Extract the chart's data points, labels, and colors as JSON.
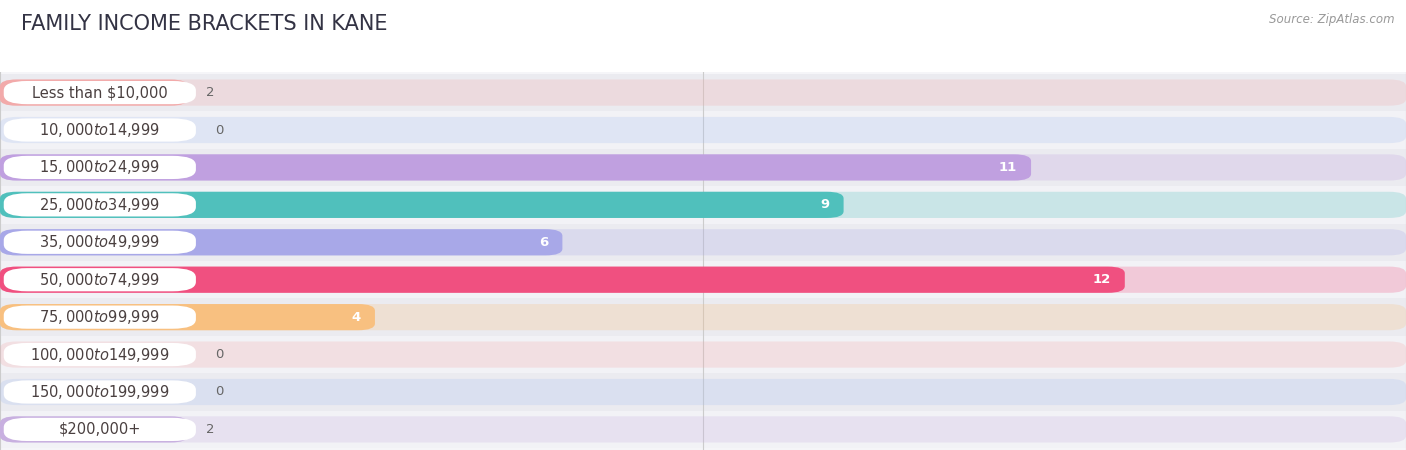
{
  "title": "FAMILY INCOME BRACKETS IN KANE",
  "source": "Source: ZipAtlas.com",
  "categories": [
    "Less than $10,000",
    "$10,000 to $14,999",
    "$15,000 to $24,999",
    "$25,000 to $34,999",
    "$35,000 to $49,999",
    "$50,000 to $74,999",
    "$75,000 to $99,999",
    "$100,000 to $149,999",
    "$150,000 to $199,999",
    "$200,000+"
  ],
  "values": [
    2,
    0,
    11,
    9,
    6,
    12,
    4,
    0,
    0,
    2
  ],
  "bar_colors": [
    "#F2AAAA",
    "#A8C0F0",
    "#C0A0E0",
    "#50C0BC",
    "#A8A8E8",
    "#F05080",
    "#F8C080",
    "#F2AAAA",
    "#A8C0F0",
    "#C8B0E0"
  ],
  "background_color": "#f5f5f8",
  "bar_background_color": "#e8e8ee",
  "row_bg_odd": "#ebebf0",
  "row_bg_even": "#f2f2f6",
  "white_color": "#ffffff",
  "xlim": [
    0,
    15
  ],
  "xticks": [
    0,
    7.5,
    15
  ],
  "title_fontsize": 15,
  "label_fontsize": 10.5,
  "value_fontsize": 9.5,
  "source_fontsize": 8.5
}
